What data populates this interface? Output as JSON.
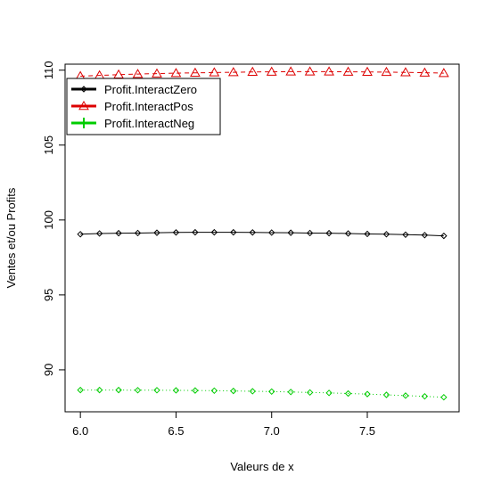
{
  "chart_data": {
    "type": "line",
    "title": "",
    "xlabel": "Valeurs de x",
    "ylabel": "Ventes et/ou Profits",
    "xlim": [
      5.92,
      7.98
    ],
    "ylim": [
      87.2,
      110.4
    ],
    "xticks": [
      6.0,
      6.5,
      7.0,
      7.5
    ],
    "xtick_labels": [
      "6.0",
      "6.5",
      "7.0",
      "7.5"
    ],
    "yticks": [
      90,
      95,
      100,
      105,
      110
    ],
    "ytick_labels": [
      "90",
      "95",
      "100",
      "105",
      "110"
    ],
    "grid": false,
    "legend_position": "top-left",
    "x": [
      6.0,
      6.1,
      6.2,
      6.3,
      6.4,
      6.5,
      6.6,
      6.7,
      6.8,
      6.9,
      7.0,
      7.1,
      7.2,
      7.3,
      7.4,
      7.5,
      7.6,
      7.7,
      7.8,
      7.9
    ],
    "series": [
      {
        "name": "Profit.InteractZero",
        "color": "#000000",
        "marker": "diamond",
        "line_style": "solid",
        "values": [
          99.05,
          99.1,
          99.12,
          99.13,
          99.15,
          99.17,
          99.18,
          99.18,
          99.18,
          99.17,
          99.16,
          99.15,
          99.13,
          99.12,
          99.1,
          99.07,
          99.05,
          99.02,
          98.99,
          98.94
        ]
      },
      {
        "name": "Profit.InteractPos",
        "color": "#dd0000",
        "marker": "triangle",
        "line_style": "dashed",
        "values": [
          109.6,
          109.65,
          109.7,
          109.74,
          109.77,
          109.8,
          109.82,
          109.84,
          109.86,
          109.88,
          109.89,
          109.9,
          109.9,
          109.9,
          109.89,
          109.88,
          109.87,
          109.85,
          109.83,
          109.8
        ]
      },
      {
        "name": "Profit.InteractNeg",
        "color": "#00cc00",
        "marker": "diamond",
        "line_style": "dotted",
        "values": [
          88.65,
          88.65,
          88.65,
          88.64,
          88.64,
          88.63,
          88.62,
          88.61,
          88.59,
          88.57,
          88.55,
          88.52,
          88.49,
          88.46,
          88.42,
          88.38,
          88.33,
          88.28,
          88.23,
          88.17
        ]
      }
    ]
  }
}
